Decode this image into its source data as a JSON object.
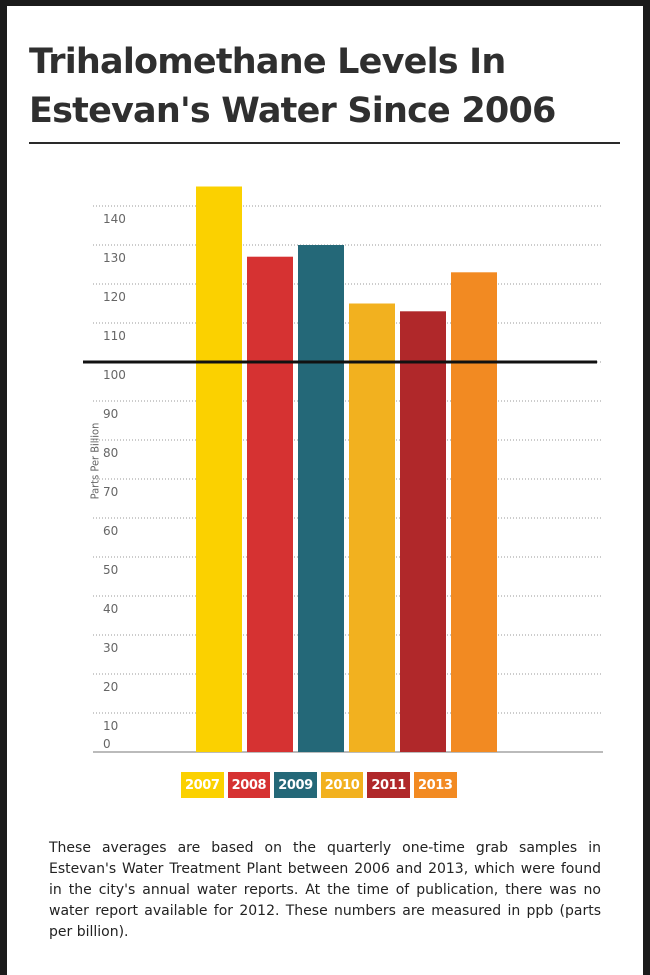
{
  "title_lines": [
    "Trihalomethane Levels In",
    "Estevan's Water Since 2006"
  ],
  "caption": "These averages are based on the quarterly one-time grab samples in Estevan's Water Treatment Plant between 2006 and 2013, which were found in the city's annual water reports. At the time of publication, there was no water report available for 2012. These numbers are measured in ppb (parts per billion).",
  "chart_data": {
    "type": "bar",
    "title": "Trihalomethane Levels In Estevan's Water Since 2006",
    "ylabel": "Parts Per Billion",
    "xlabel": "",
    "ylim": [
      0,
      140
    ],
    "yticks": [
      0,
      10,
      20,
      30,
      40,
      50,
      60,
      70,
      80,
      90,
      100,
      110,
      120,
      130,
      140
    ],
    "grid": true,
    "reference_line": 100,
    "categories": [
      "2007",
      "2008",
      "2009",
      "2010",
      "2011",
      "2013"
    ],
    "values": [
      145,
      127,
      130,
      115,
      113,
      123
    ],
    "colors": [
      "#FBD100",
      "#D63232",
      "#246878",
      "#F2B11F",
      "#B0282A",
      "#F28A22"
    ],
    "legend_position": "bottom"
  }
}
